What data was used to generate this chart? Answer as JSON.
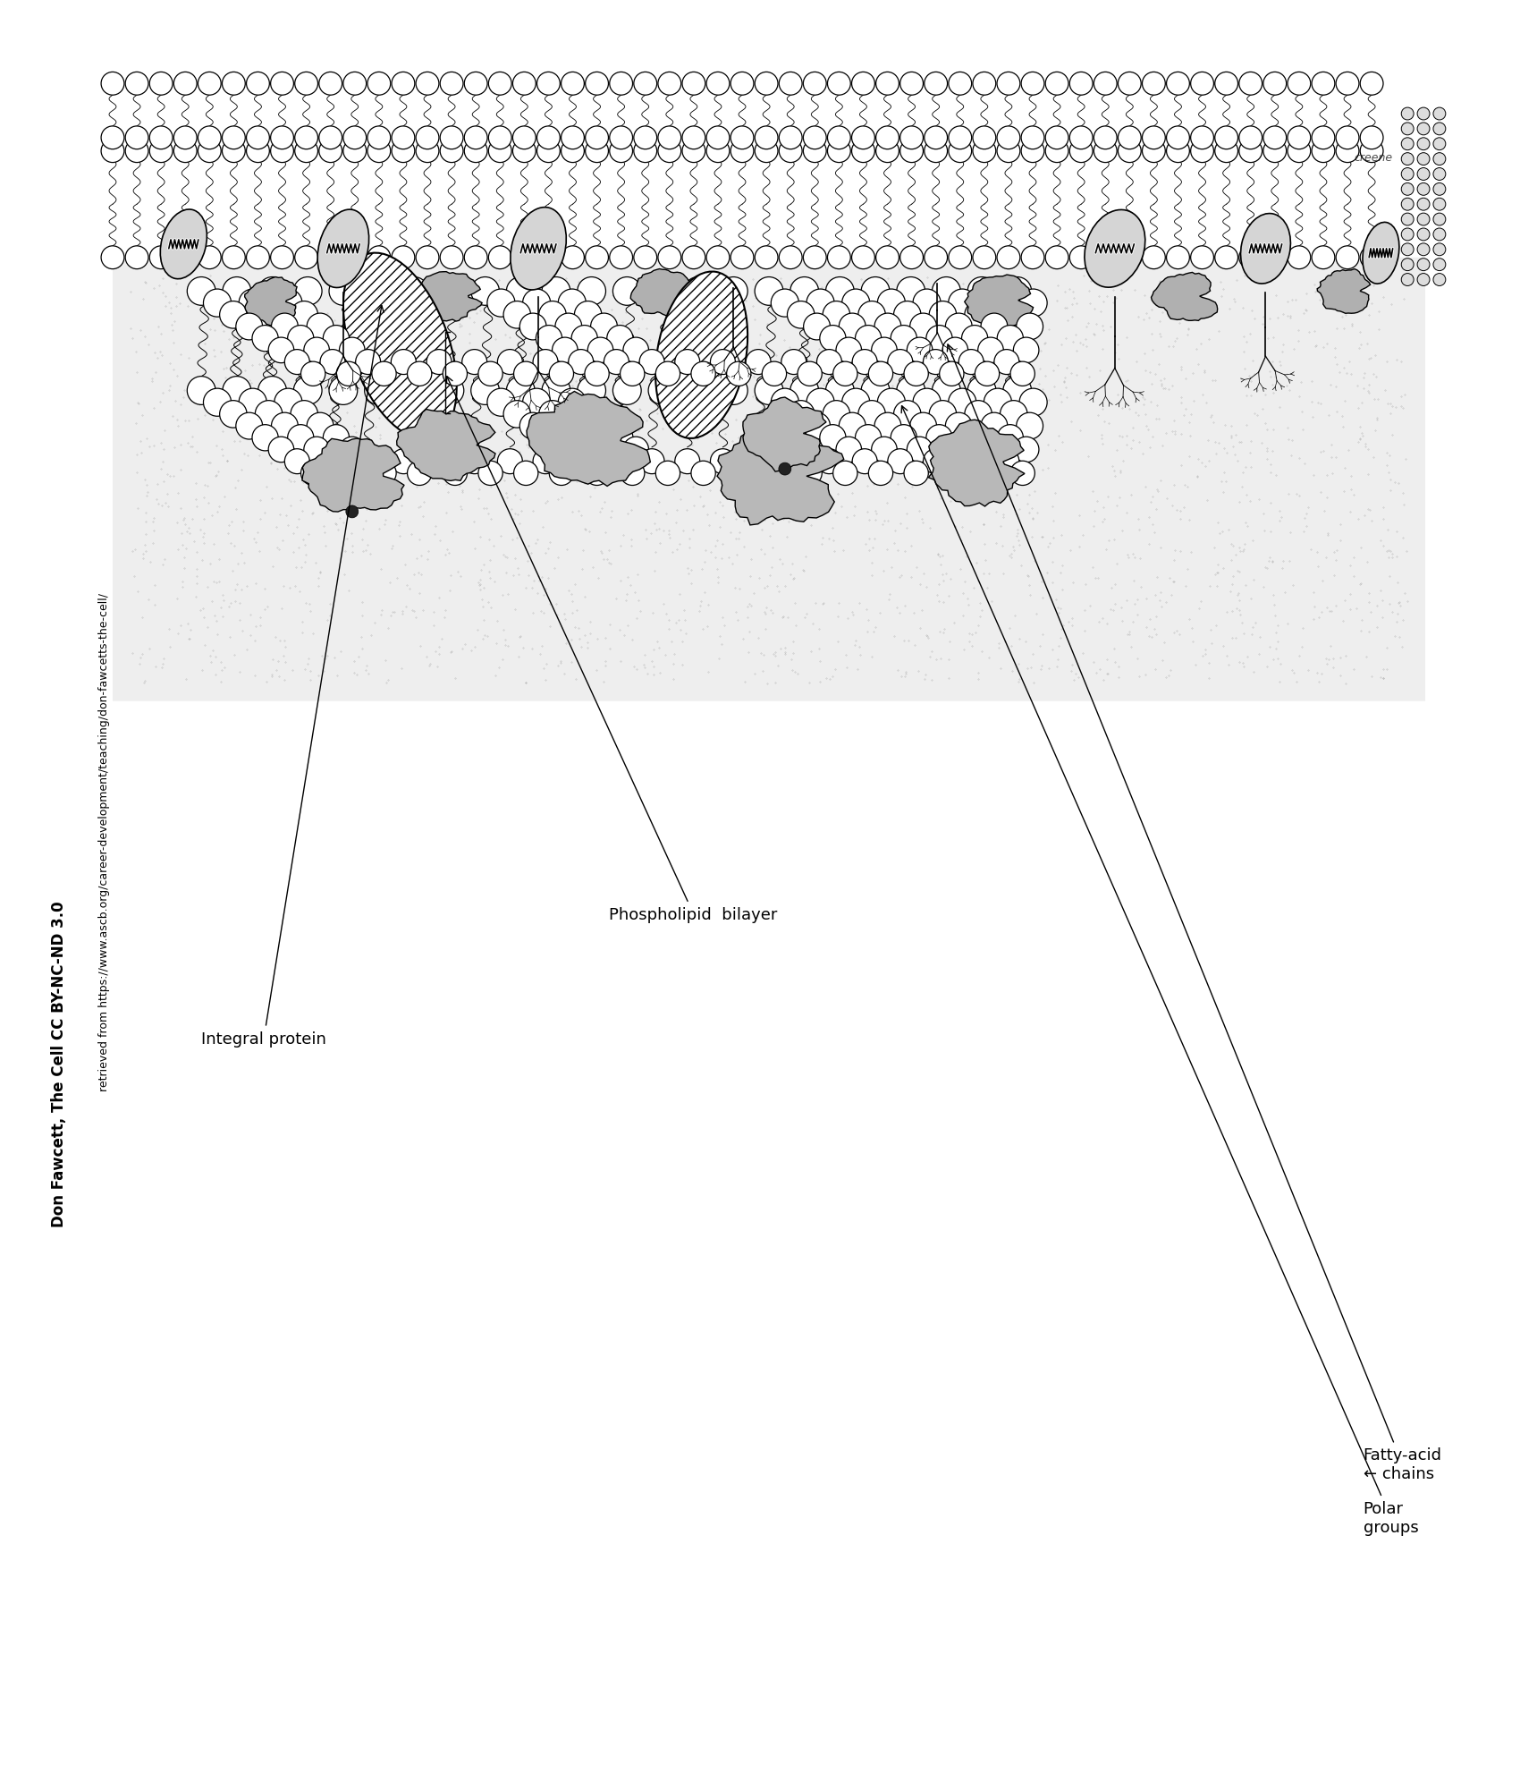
{
  "background_color": "#ffffff",
  "fig_width": 17.19,
  "fig_height": 19.83,
  "title1": "Don Fawcett, The Cell CC BY-NC-ND 3.0",
  "title2": "retrieved from https://www.ascb.org/career-development/teaching/don-fawcetts-the-cell/",
  "label_polar_groups": "Polar\ngroups",
  "label_fatty_acid": "Fatty-acid\n← chains",
  "label_integral": "Integral protein",
  "label_phospholipid": "Phospholipid  bilayer",
  "text_color": "#000000"
}
